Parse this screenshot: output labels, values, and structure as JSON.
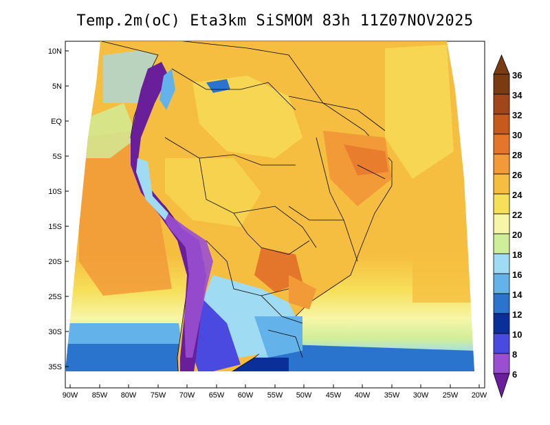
{
  "title": "Temp.2m(oC) Eta3km SiSMOM 83h 11Z07NOV2025",
  "map": {
    "lat_labels": [
      "10N",
      "5N",
      "EQ",
      "5S",
      "10S",
      "15S",
      "20S",
      "25S",
      "30S",
      "35S"
    ],
    "lon_labels": [
      "90W",
      "85W",
      "80W",
      "75W",
      "70W",
      "65W",
      "60W",
      "55W",
      "50W",
      "45W",
      "40W",
      "35W",
      "30W",
      "25W",
      "20W"
    ]
  },
  "colorbar": {
    "labels": [
      "36",
      "34",
      "32",
      "30",
      "28",
      "26",
      "24",
      "22",
      "20",
      "18",
      "16",
      "14",
      "12",
      "10",
      "8",
      "6"
    ],
    "colors": [
      "#7a3b12",
      "#a0461a",
      "#c65a1c",
      "#e3762a",
      "#f29a38",
      "#f6be40",
      "#f6e05a",
      "#f7f6a8",
      "#cfee99",
      "#9fdcf3",
      "#63b3ea",
      "#2b74cd",
      "#0b2f98",
      "#4a4ae0",
      "#9a4fd0",
      "#6a1f9a"
    ]
  }
}
